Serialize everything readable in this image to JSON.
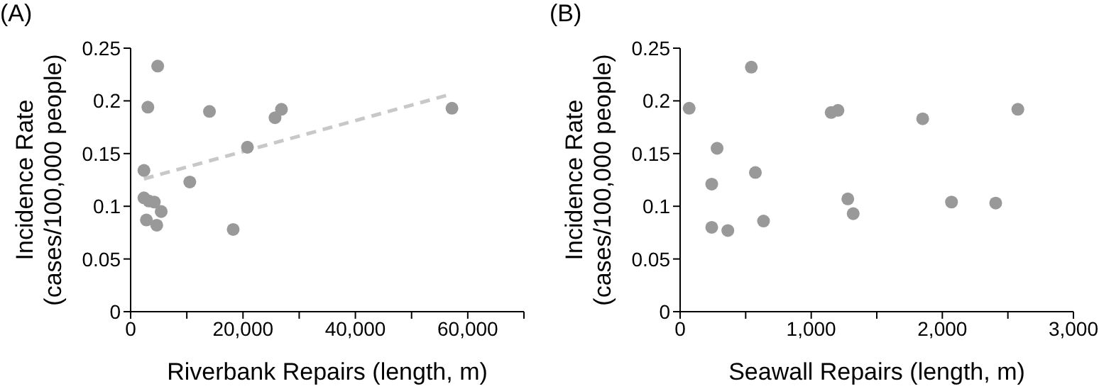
{
  "chart_data": [
    {
      "type": "scatter",
      "title": "(A)",
      "xlabel": "Riverbank Repairs (length, m)",
      "ylabel": "Incidence Rate (cases/100,000 people)",
      "xlim": [
        0,
        70000
      ],
      "xticks": [
        {
          "value": 0,
          "label": "0"
        },
        {
          "value": 10000,
          "label": null
        },
        {
          "value": 20000,
          "label": "20,000"
        },
        {
          "value": 30000,
          "label": null
        },
        {
          "value": 40000,
          "label": "40,000"
        },
        {
          "value": 50000,
          "label": null
        },
        {
          "value": 60000,
          "label": "60,000"
        },
        {
          "value": 70000,
          "label": null
        }
      ],
      "ylim": [
        0,
        0.25
      ],
      "yticks": [
        0,
        0.05,
        0.1,
        0.15,
        0.2,
        0.25
      ],
      "grid": false,
      "legend": false,
      "marker": "circle",
      "series": [
        {
          "type": "scatter",
          "color": "#999999",
          "x": [
            4820,
            3070,
            14030,
            25700,
            26840,
            57190,
            20790,
            2370,
            10530,
            2370,
            3250,
            4210,
            5440,
            2810,
            4650,
            18250
          ],
          "values": [
            0.233,
            0.194,
            0.19,
            0.184,
            0.192,
            0.193,
            0.156,
            0.134,
            0.123,
            0.108,
            0.105,
            0.104,
            0.095,
            0.087,
            0.082,
            0.078
          ]
        },
        {
          "type": "line",
          "color": "#c8c8c8",
          "line_style": "dashed",
          "marker": "none",
          "x": [
            2370,
            56140
          ],
          "values": [
            0.126,
            0.205
          ]
        }
      ]
    },
    {
      "type": "scatter",
      "title": "(B)",
      "xlabel": "Seawall Repairs (length, m)",
      "ylabel": "Incidence Rate (cases/100,000 people)",
      "xlim": [
        0,
        3000
      ],
      "xticks": [
        {
          "value": 0,
          "label": "0"
        },
        {
          "value": 500,
          "label": null
        },
        {
          "value": 1000,
          "label": "1,000"
        },
        {
          "value": 1500,
          "label": null
        },
        {
          "value": 2000,
          "label": "2,000"
        },
        {
          "value": 2500,
          "label": null
        },
        {
          "value": 3000,
          "label": "3,000"
        }
      ],
      "ylim": [
        0,
        0.25
      ],
      "yticks": [
        0,
        0.05,
        0.1,
        0.15,
        0.2,
        0.25
      ],
      "grid": false,
      "legend": false,
      "marker": "circle",
      "series": [
        {
          "type": "scatter",
          "color": "#999999",
          "x": [
            69,
            543,
            1152,
            1204,
            1850,
            2576,
            282,
            241,
            574,
            1279,
            1320,
            2070,
            2407,
            241,
            364,
            636
          ],
          "values": [
            0.193,
            0.232,
            0.189,
            0.191,
            0.183,
            0.192,
            0.155,
            0.121,
            0.132,
            0.107,
            0.093,
            0.104,
            0.103,
            0.08,
            0.077,
            0.086
          ]
        }
      ]
    }
  ]
}
